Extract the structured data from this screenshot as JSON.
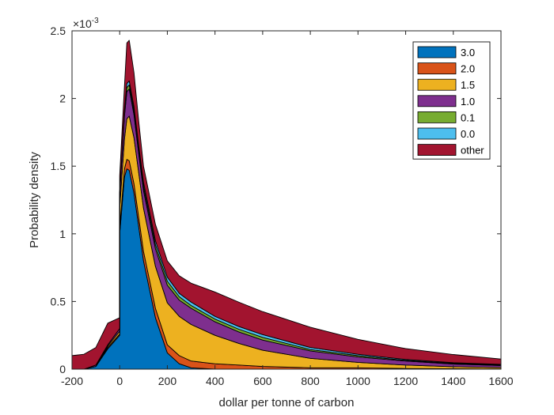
{
  "chart_data": {
    "type": "area",
    "stacked": true,
    "xlabel": "dollar per tonne of carbon",
    "ylabel": "Probability density",
    "y_exponent_label": "×10",
    "y_exponent_power": "-3",
    "xlim": [
      -200,
      1600
    ],
    "ylim": [
      0,
      2.5
    ],
    "xticks": [
      -200,
      0,
      200,
      400,
      600,
      800,
      1000,
      1200,
      1400,
      1600
    ],
    "yticks": [
      0,
      0.5,
      1,
      1.5,
      2,
      2.5
    ],
    "ytick_labels": [
      "0",
      "0.5",
      "1",
      "1.5",
      "2",
      "2.5"
    ],
    "grid": false,
    "legend_position": "top-right",
    "x": [
      -200,
      -150,
      -100,
      -50,
      0,
      0,
      20,
      30,
      40,
      60,
      80,
      100,
      150,
      200,
      250,
      300,
      400,
      500,
      600,
      800,
      1000,
      1200,
      1400,
      1600
    ],
    "series": [
      {
        "name": "3.0",
        "color": "#0072BD",
        "values": [
          0,
          0,
          0.02,
          0.15,
          0.25,
          1.0,
          1.42,
          1.48,
          1.47,
          1.3,
          1.05,
          0.8,
          0.38,
          0.12,
          0.04,
          0.01,
          0,
          0,
          0,
          0,
          0,
          0,
          0,
          0
        ]
      },
      {
        "name": "2.0",
        "color": "#D95319",
        "values": [
          0,
          0,
          0,
          0.01,
          0.01,
          0.04,
          0.06,
          0.07,
          0.07,
          0.07,
          0.07,
          0.07,
          0.07,
          0.06,
          0.06,
          0.05,
          0.04,
          0.03,
          0.02,
          0.01,
          0.01,
          0.005,
          0.003,
          0.002
        ]
      },
      {
        "name": "1.5",
        "color": "#EDB120",
        "values": [
          0,
          0,
          0,
          0.01,
          0.02,
          0.15,
          0.22,
          0.3,
          0.33,
          0.34,
          0.33,
          0.32,
          0.31,
          0.31,
          0.29,
          0.27,
          0.21,
          0.16,
          0.12,
          0.07,
          0.04,
          0.025,
          0.015,
          0.01
        ]
      },
      {
        "name": "1.0",
        "color": "#7E2F8E",
        "values": [
          0,
          0,
          0.01,
          0.01,
          0.02,
          0.1,
          0.17,
          0.2,
          0.2,
          0.17,
          0.14,
          0.13,
          0.13,
          0.13,
          0.12,
          0.12,
          0.1,
          0.085,
          0.075,
          0.055,
          0.04,
          0.03,
          0.02,
          0.015
        ]
      },
      {
        "name": "0.1",
        "color": "#77AC30",
        "values": [
          0,
          0,
          0,
          0,
          0,
          0.01,
          0.02,
          0.03,
          0.03,
          0.03,
          0.03,
          0.03,
          0.03,
          0.03,
          0.025,
          0.02,
          0.02,
          0.02,
          0.02,
          0.01,
          0.01,
          0.005,
          0.005,
          0.005
        ]
      },
      {
        "name": "0.0",
        "color": "#4DBEEE",
        "values": [
          0,
          0,
          0,
          0,
          0,
          0.01,
          0.02,
          0.03,
          0.03,
          0.03,
          0.03,
          0.03,
          0.03,
          0.03,
          0.025,
          0.025,
          0.02,
          0.02,
          0.02,
          0.015,
          0.01,
          0.007,
          0.005,
          0.003
        ]
      },
      {
        "name": "other",
        "color": "#A2142F",
        "values": [
          0.1,
          0.11,
          0.13,
          0.16,
          0.08,
          0.12,
          0.18,
          0.3,
          0.3,
          0.25,
          0.18,
          0.12,
          0.12,
          0.12,
          0.13,
          0.14,
          0.18,
          0.18,
          0.17,
          0.15,
          0.11,
          0.08,
          0.06,
          0.04
        ]
      }
    ]
  }
}
